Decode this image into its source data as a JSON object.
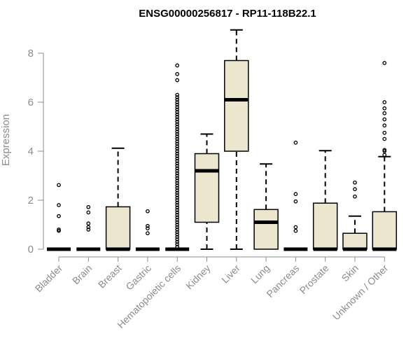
{
  "chart_data": {
    "type": "boxplot",
    "title": "ENSG00000256817 - RP11-118B22.1",
    "xlabel": "",
    "ylabel": "Expression",
    "ylim": [
      0,
      9.1
    ],
    "yticks": [
      0,
      2,
      4,
      6,
      8
    ],
    "grid": false,
    "colors": {
      "box_fill": "#ede6cf",
      "stroke": "#000000",
      "axis_text": "#8c8c8c"
    },
    "categories": [
      "Bladder",
      "Brain",
      "Breast",
      "Gastric",
      "Hematopoietic cells",
      "Kidney",
      "Liver",
      "Lung",
      "Pancreas",
      "Prostate",
      "Skin",
      "Unknown / Other"
    ],
    "boxes": [
      {
        "min": 0,
        "q1": 0,
        "median": 0,
        "q3": 0,
        "max": 0,
        "outliers": [
          0.75,
          0.8,
          1.35,
          1.8,
          2.62
        ]
      },
      {
        "min": 0,
        "q1": 0,
        "median": 0,
        "q3": 0,
        "max": 0,
        "outliers": [
          0.8,
          0.9,
          1.05,
          1.5,
          1.72
        ]
      },
      {
        "min": 0,
        "q1": 0,
        "median": 0,
        "q3": 1.73,
        "max": 4.12,
        "outliers": []
      },
      {
        "min": 0,
        "q1": 0,
        "median": 0,
        "q3": 0,
        "max": 0,
        "outliers": [
          0.65,
          0.85,
          0.95,
          1.55
        ]
      },
      {
        "min": 0,
        "q1": 0,
        "median": 0,
        "q3": 0,
        "max": 0,
        "outliers": [
          0.1,
          0.2,
          0.3,
          0.4,
          0.5,
          0.6,
          0.7,
          0.8,
          0.9,
          1.0,
          1.1,
          1.2,
          1.3,
          1.4,
          1.5,
          1.6,
          1.7,
          1.8,
          1.9,
          2.0,
          2.1,
          2.2,
          2.3,
          2.4,
          2.5,
          2.6,
          2.7,
          2.8,
          2.9,
          3.0,
          3.1,
          3.2,
          3.3,
          3.4,
          3.5,
          3.6,
          3.7,
          3.8,
          3.9,
          4.0,
          4.1,
          4.2,
          4.3,
          4.4,
          4.5,
          4.6,
          4.7,
          4.8,
          4.9,
          5.0,
          5.1,
          5.2,
          5.3,
          5.4,
          5.5,
          5.6,
          5.7,
          5.8,
          5.9,
          6.0,
          6.1,
          6.2,
          6.3,
          6.9,
          7.15,
          7.5
        ]
      },
      {
        "min": 0,
        "q1": 1.1,
        "median": 3.2,
        "q3": 3.9,
        "max": 4.7,
        "outliers": []
      },
      {
        "min": 0,
        "q1": 4.0,
        "median": 6.1,
        "q3": 7.7,
        "max": 8.95,
        "outliers": []
      },
      {
        "min": 0,
        "q1": 0,
        "median": 1.1,
        "q3": 1.62,
        "max": 3.48,
        "outliers": []
      },
      {
        "min": 0,
        "q1": 0,
        "median": 0,
        "q3": 0,
        "max": 0,
        "outliers": [
          0.75,
          0.9,
          1.95,
          2.25,
          4.35
        ]
      },
      {
        "min": 0,
        "q1": 0,
        "median": 0,
        "q3": 1.88,
        "max": 4.02,
        "outliers": []
      },
      {
        "min": 0,
        "q1": 0,
        "median": 0,
        "q3": 0.65,
        "max": 1.35,
        "outliers": [
          2.15,
          2.45,
          2.72
        ]
      },
      {
        "min": 0,
        "q1": 0,
        "median": 0,
        "q3": 1.53,
        "max": 3.78,
        "outliers": [
          3.85,
          4.0,
          4.05,
          4.5,
          4.75,
          5.05,
          5.3,
          5.55,
          5.75,
          6.0,
          7.6
        ]
      }
    ]
  }
}
